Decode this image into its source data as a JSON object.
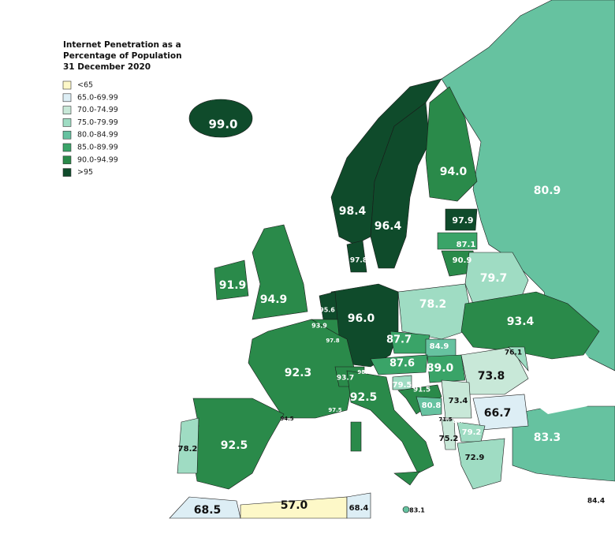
{
  "legend": {
    "title": [
      "Internet Penetration as a",
      "Percentage of Population",
      "31 December 2020"
    ],
    "items": [
      {
        "label": "<65",
        "color": "#fdf8c8"
      },
      {
        "label": "65.0-69.99",
        "color": "#ddeef5"
      },
      {
        "label": "70.0-74.99",
        "color": "#c8e8d8"
      },
      {
        "label": "75.0-79.99",
        "color": "#9fdcc3"
      },
      {
        "label": "80.0-84.99",
        "color": "#66c2a0"
      },
      {
        "label": "85.0-89.99",
        "color": "#3aa468"
      },
      {
        "label": "90.0-94.99",
        "color": "#2a8a4a"
      },
      {
        "label": ">95",
        "color": "#0f4b2b"
      }
    ]
  },
  "labels": [
    "99.0",
    "98.4",
    "96.4",
    "94.0",
    "80.9",
    "97.9",
    "87.1",
    "90.9",
    "97.8",
    "91.9",
    "94.9",
    "79.7",
    "78.2",
    "95.6",
    "96.0",
    "93.9",
    "97.8",
    "93.4",
    "87.7",
    "84.9",
    "76.1",
    "92.3",
    "87.6",
    "89.0",
    "73.8",
    "98.1",
    "93.7",
    "79.5",
    "91.5",
    "73.4",
    "92.5",
    "80.8",
    "66.7",
    "94.5",
    "97.5",
    "71.5",
    "88.0",
    "79.2",
    "75.2",
    "83.3",
    "92.5",
    "78.2",
    "72.9",
    "84.4",
    "68.5",
    "57.0",
    "68.4",
    "83.1"
  ]
}
